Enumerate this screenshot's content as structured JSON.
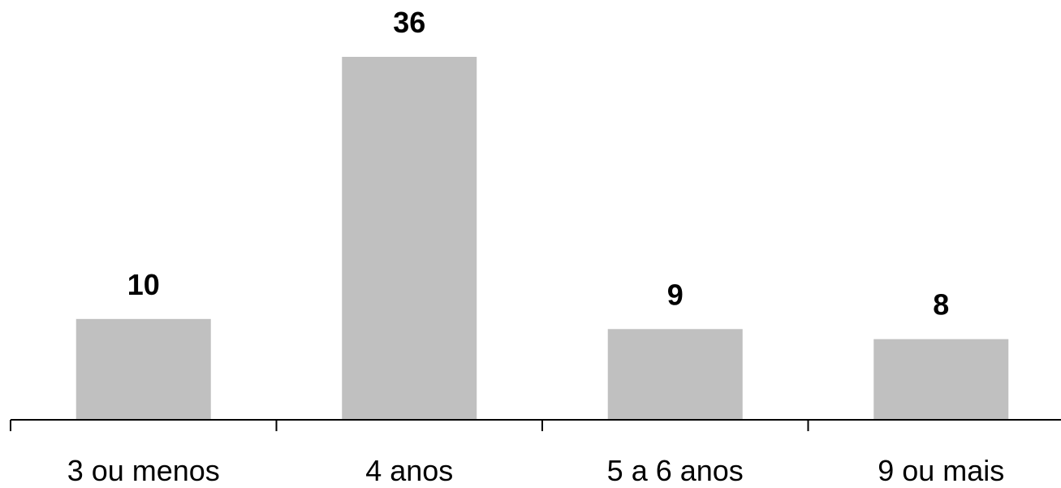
{
  "chart_data": {
    "type": "bar",
    "categories": [
      "3 ou menos",
      "4 anos",
      "5 a 6 anos",
      "9 ou mais"
    ],
    "values": [
      10,
      36,
      9,
      8
    ],
    "title": "",
    "xlabel": "",
    "ylabel": "",
    "ylim": [
      0,
      36
    ],
    "grid": false,
    "legend": "none",
    "data_labels": [
      "10",
      "36",
      "9",
      "8"
    ],
    "colors": {
      "bar": "#c0c0c0",
      "axis": "#000000",
      "text": "#000000"
    }
  }
}
